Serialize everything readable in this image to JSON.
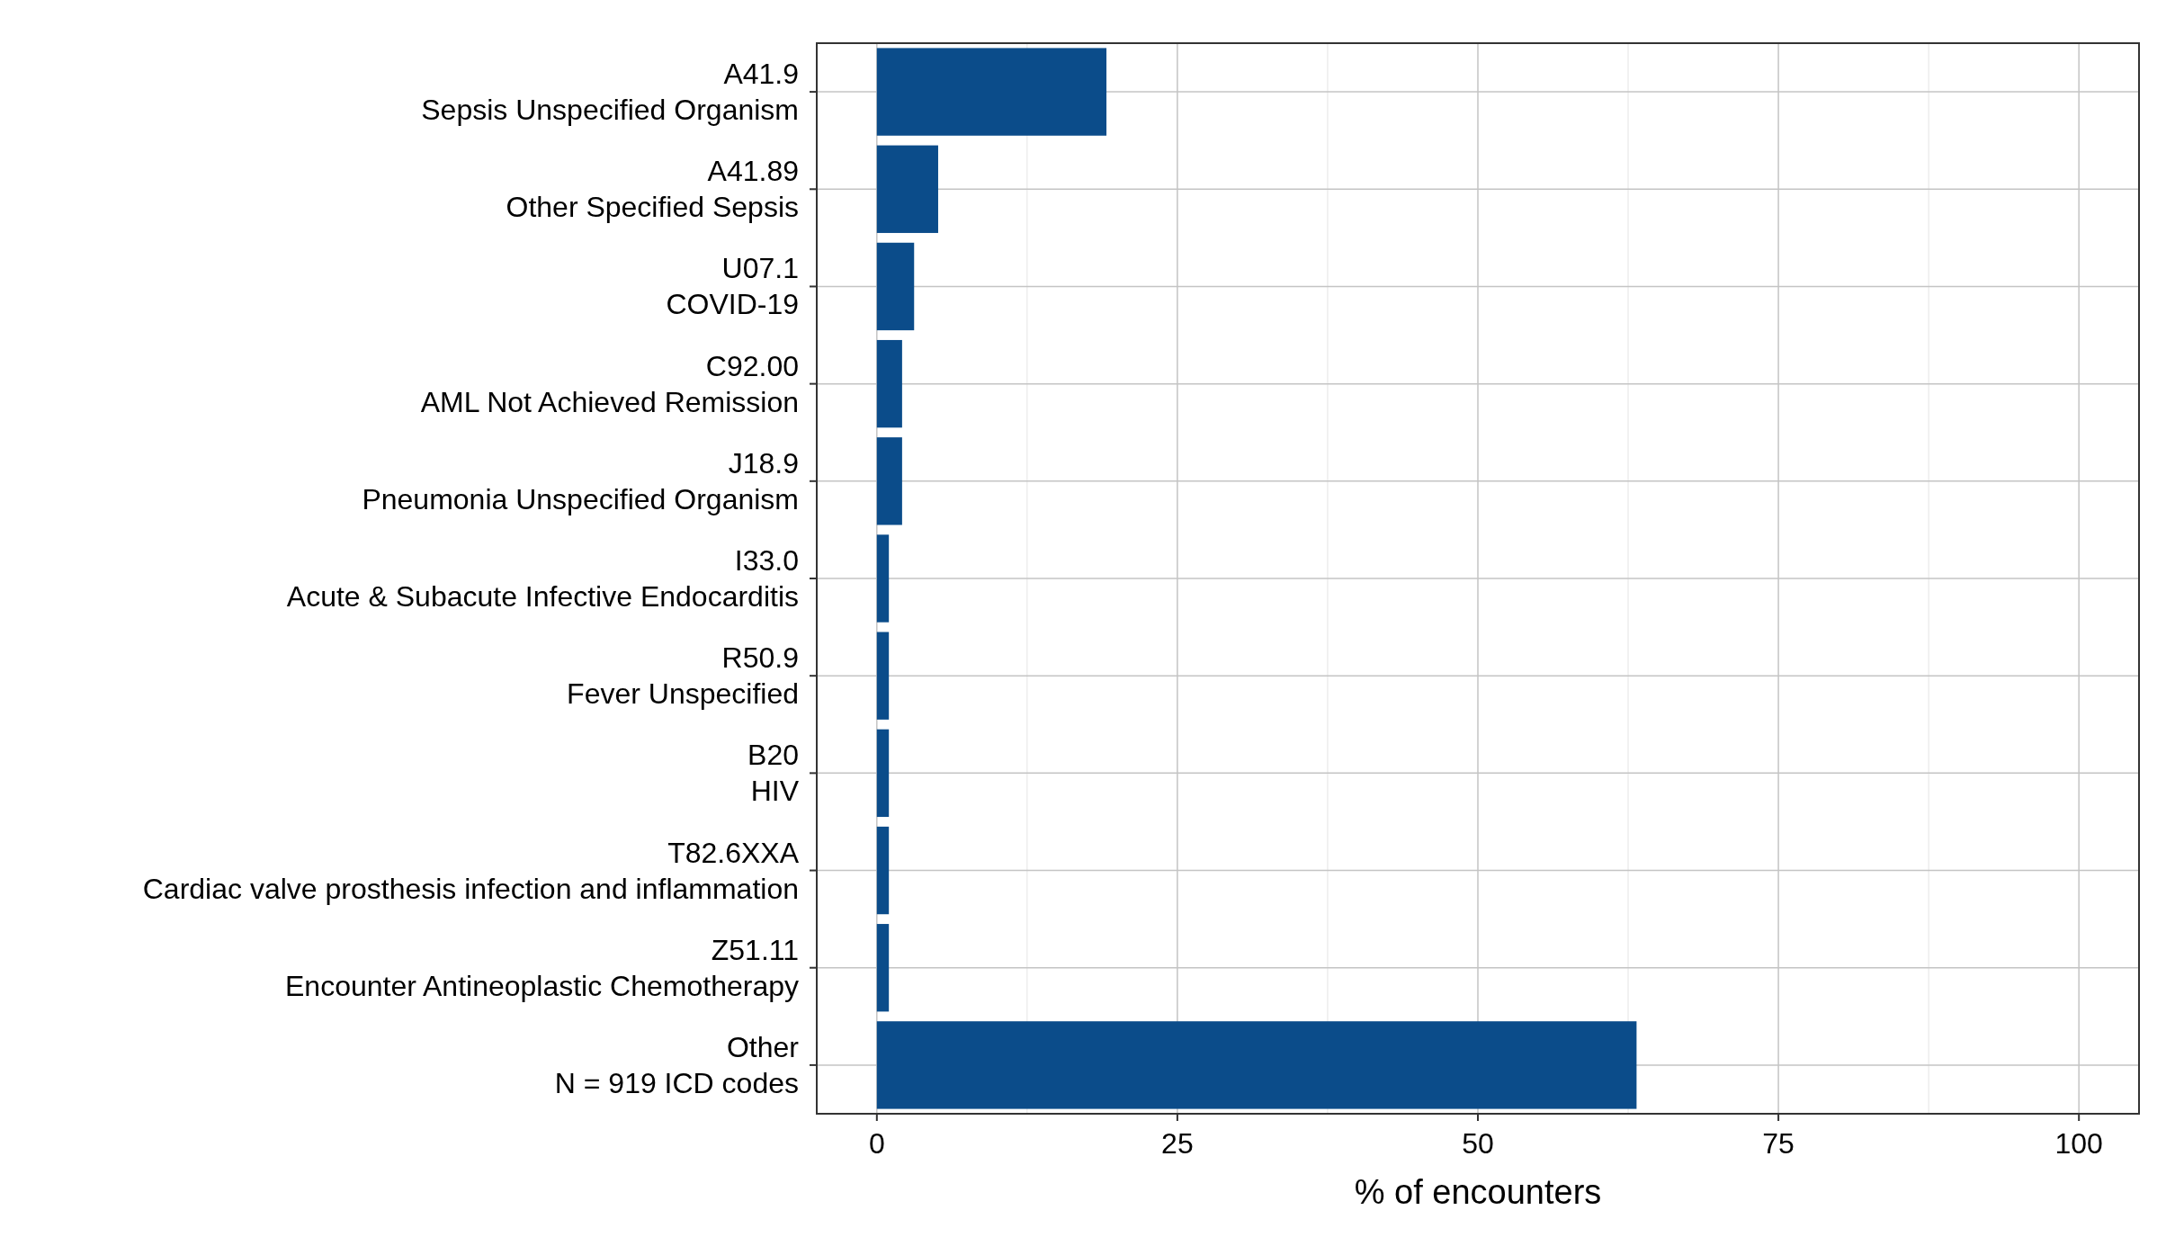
{
  "chart_data": {
    "type": "bar",
    "orientation": "horizontal",
    "xlabel": "% of encounters",
    "categories": [
      "A41.9\nSepsis Unspecified Organism",
      "A41.89\nOther Specified Sepsis",
      "U07.1\nCOVID-19",
      "C92.00\nAML Not Achieved Remission",
      "J18.9\nPneumonia Unspecified Organism",
      "I33.0\nAcute & Subacute Infective Endocarditis",
      "R50.9\nFever Unspecified",
      "B20\nHIV",
      "T82.6XXA\nCardiac valve prosthesis infection and inflammation",
      "Z51.11\nEncounter Antineoplastic Chemotherapy",
      "Other\nN = 919 ICD codes"
    ],
    "values": [
      19.1,
      5.1,
      3.1,
      2.1,
      2.1,
      1.0,
      1.0,
      1.0,
      1.0,
      1.0,
      63.2
    ],
    "color": "#0b4c8a",
    "xlim": [
      -5,
      105
    ],
    "xticks": [
      0,
      {
        "value": 12.5,
        "label": null
      },
      25,
      {
        "value": 37.5,
        "label": null
      },
      50,
      {
        "value": 62.5,
        "label": null
      },
      75,
      {
        "value": 87.5,
        "label": null
      },
      100
    ],
    "grid": true
  }
}
